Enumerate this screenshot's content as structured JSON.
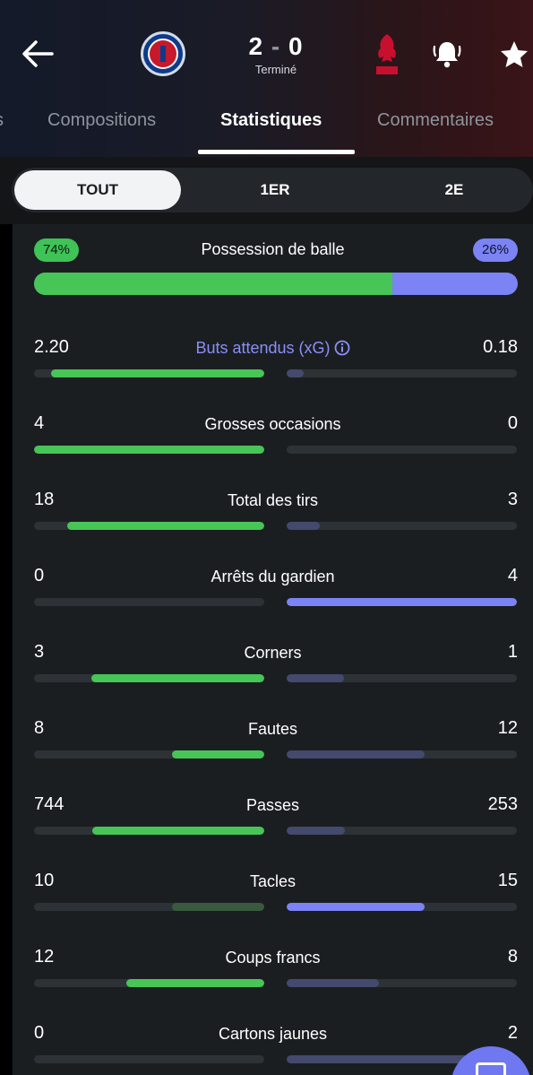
{
  "match": {
    "home_team_logo": "psg-crest",
    "away_team_logo": "liverpool-crest",
    "score_home": "2",
    "score_separator": "-",
    "score_away": "0",
    "status": "Terminé"
  },
  "header_icons": {
    "back": "back-arrow-icon",
    "bell": "bell-icon",
    "star": "star-icon"
  },
  "tabs": [
    {
      "label": "Compositions",
      "active": false
    },
    {
      "label": "Statistiques",
      "active": true
    },
    {
      "label": "Commentaires",
      "active": false
    }
  ],
  "periods": [
    {
      "label": "TOUT",
      "active": true
    },
    {
      "label": "1ER",
      "active": false
    },
    {
      "label": "2E",
      "active": false
    }
  ],
  "colors": {
    "home": "#47c556",
    "home_dim": "#3a5a3f",
    "away": "#7b83f5",
    "away_dim": "#434a6d",
    "track": "#2d3237"
  },
  "possession": {
    "label": "Possession de balle",
    "home_text": "74%",
    "away_text": "26%",
    "home_fraction": 0.74
  },
  "stats": [
    {
      "label": "Buts attendus (xG)",
      "home": "2.20",
      "away": "0.18",
      "home_val": 2.2,
      "away_val": 0.18,
      "link": true,
      "winner": "home"
    },
    {
      "label": "Grosses occasions",
      "home": "4",
      "away": "0",
      "home_val": 4,
      "away_val": 0,
      "link": false,
      "winner": "home"
    },
    {
      "label": "Total des tirs",
      "home": "18",
      "away": "3",
      "home_val": 18,
      "away_val": 3,
      "link": false,
      "winner": "home"
    },
    {
      "label": "Arrêts du gardien",
      "home": "0",
      "away": "4",
      "home_val": 0,
      "away_val": 4,
      "link": false,
      "winner": "away"
    },
    {
      "label": "Corners",
      "home": "3",
      "away": "1",
      "home_val": 3,
      "away_val": 1,
      "link": false,
      "winner": "home"
    },
    {
      "label": "Fautes",
      "home": "8",
      "away": "12",
      "home_val": 8,
      "away_val": 12,
      "link": false,
      "winner": "home"
    },
    {
      "label": "Passes",
      "home": "744",
      "away": "253",
      "home_val": 744,
      "away_val": 253,
      "link": false,
      "winner": "home"
    },
    {
      "label": "Tacles",
      "home": "10",
      "away": "15",
      "home_val": 10,
      "away_val": 15,
      "link": false,
      "winner": "away"
    },
    {
      "label": "Coups francs",
      "home": "12",
      "away": "8",
      "home_val": 12,
      "away_val": 8,
      "link": false,
      "winner": "home"
    },
    {
      "label": "Cartons jaunes",
      "home": "0",
      "away": "2",
      "home_val": 0,
      "away_val": 2,
      "link": false,
      "winner": "home"
    }
  ],
  "fab_icon": "chat-icon"
}
